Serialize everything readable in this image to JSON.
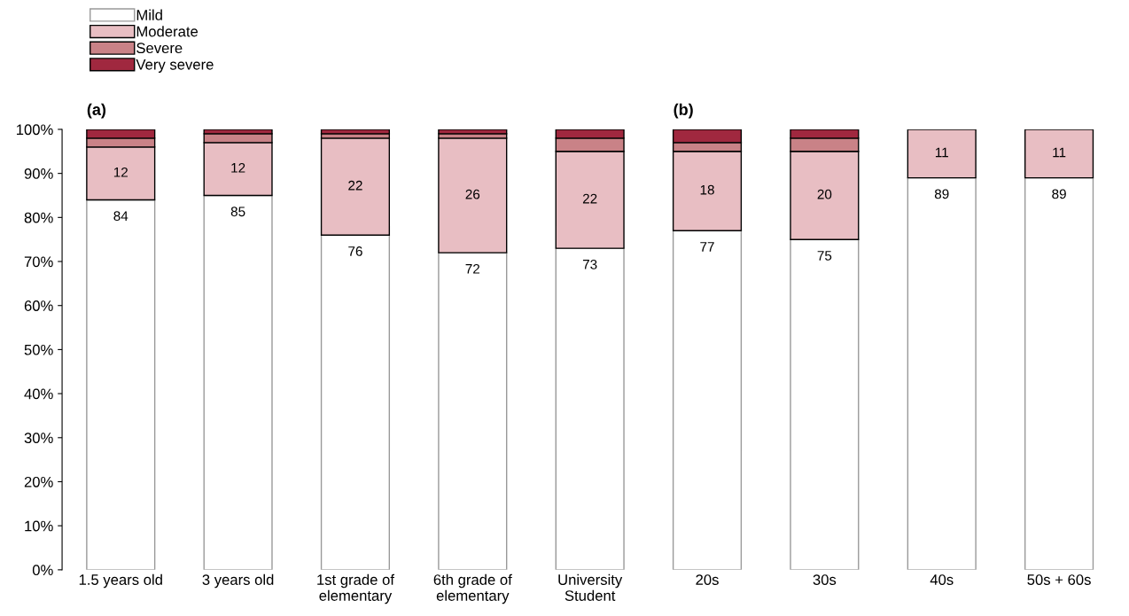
{
  "chart_data": {
    "type": "bar",
    "stacked": true,
    "categories": [
      "1.5 years old",
      "3 years old",
      "1st grade of\nelementary",
      "6th grade of\nelementary",
      "University\nStudent",
      "20s",
      "30s",
      "40s",
      "50s + 60s"
    ],
    "series": [
      {
        "name": "Mild",
        "color": "#ffffff",
        "values": [
          84,
          85,
          76,
          72,
          73,
          77,
          75,
          89,
          89
        ],
        "value_labels": [
          "84",
          "85",
          "76",
          "72",
          "73",
          "77",
          "75",
          "89",
          "89"
        ]
      },
      {
        "name": "Moderate",
        "color": "#e8bec3",
        "values": [
          12,
          12,
          22,
          26,
          22,
          18,
          20,
          11,
          11
        ],
        "value_labels": [
          "12",
          "12",
          "22",
          "26",
          "22",
          "18",
          "20",
          "11",
          "11"
        ]
      },
      {
        "name": "Severe",
        "color": "#c98287",
        "values": [
          2,
          2,
          1,
          1,
          3,
          2,
          3,
          0,
          0
        ]
      },
      {
        "name": "Very severe",
        "color": "#a0283f",
        "values": [
          2,
          1,
          1,
          1,
          2,
          3,
          2,
          0,
          0
        ]
      }
    ],
    "ylim": [
      0,
      100
    ],
    "yticks": [
      {
        "value": 0,
        "label": "0%"
      },
      {
        "value": 10,
        "label": "10%"
      },
      {
        "value": 20,
        "label": "20%"
      },
      {
        "value": 30,
        "label": "30%"
      },
      {
        "value": 40,
        "label": "40%"
      },
      {
        "value": 50,
        "label": "50%"
      },
      {
        "value": 60,
        "label": "60%"
      },
      {
        "value": 70,
        "label": "70%"
      },
      {
        "value": 80,
        "label": "80%"
      },
      {
        "value": 90,
        "label": "90%"
      },
      {
        "value": 100,
        "label": "100%"
      }
    ],
    "annotations": [
      "(a)",
      "(b)"
    ],
    "grid": false,
    "legend": "top left"
  }
}
